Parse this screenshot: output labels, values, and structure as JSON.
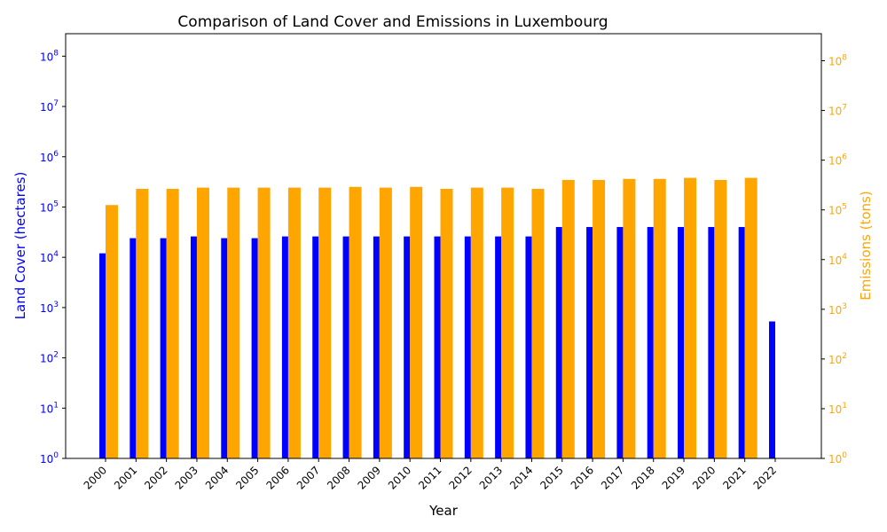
{
  "chart_data": {
    "type": "bar",
    "title": "Comparison of Land Cover and Emissions in Luxembourg",
    "xlabel": "Year",
    "ylabel_left": "Land Cover (hectares)",
    "ylabel_right": "Emissions (tons)",
    "y_scale": "log",
    "ylim_left": [
      1,
      280000000
    ],
    "ylim_right": [
      1,
      350000000
    ],
    "grid": false,
    "colors": {
      "land_cover": "#0000ff",
      "emissions": "#ffa500"
    },
    "categories": [
      "2000",
      "2001",
      "2002",
      "2003",
      "2004",
      "2005",
      "2006",
      "2007",
      "2008",
      "2009",
      "2010",
      "2011",
      "2012",
      "2013",
      "2014",
      "2015",
      "2016",
      "2017",
      "2018",
      "2019",
      "2020",
      "2021",
      "2022"
    ],
    "series": [
      {
        "key": "land_cover",
        "axis": "left",
        "values": [
          12000,
          24000,
          24000,
          26000,
          24000,
          24000,
          26000,
          26000,
          26000,
          26000,
          26000,
          26000,
          26000,
          26000,
          26000,
          40000,
          40000,
          40000,
          40000,
          40000,
          40000,
          40000,
          530
        ]
      },
      {
        "key": "emissions",
        "axis": "right",
        "values": [
          125000,
          265000,
          265000,
          280000,
          280000,
          280000,
          280000,
          280000,
          290000,
          280000,
          290000,
          265000,
          280000,
          280000,
          265000,
          400000,
          400000,
          420000,
          420000,
          440000,
          400000,
          440000,
          null
        ]
      }
    ],
    "left_ticks": [
      "10^0",
      "10^1",
      "10^2",
      "10^3",
      "10^4",
      "10^5",
      "10^6",
      "10^7",
      "10^8"
    ],
    "right_ticks": [
      "10^0",
      "10^1",
      "10^2",
      "10^3",
      "10^4",
      "10^5",
      "10^6",
      "10^7",
      "10^8"
    ]
  }
}
